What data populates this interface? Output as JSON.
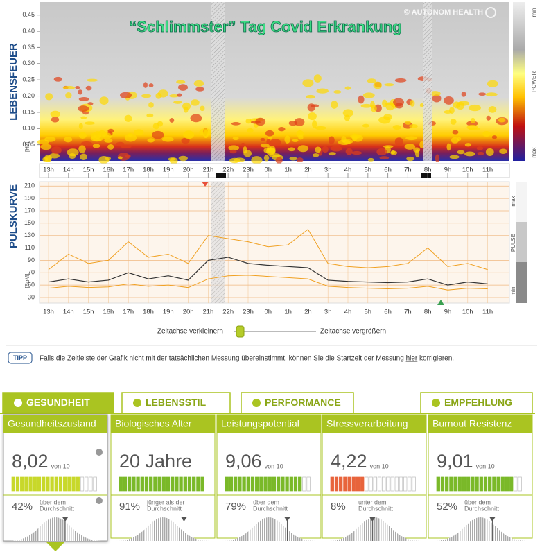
{
  "lebensfeuer": {
    "axis_label": "LEBENSFEUER",
    "unit": "[Hz]",
    "title": "“Schlimmster” Tag Covid Erkrankung",
    "copyright": "© AUTONOM HEALTH",
    "ylim": [
      0,
      0.49
    ],
    "yticks": [
      0.45,
      {
        "value": 0.4,
        "label": "0.40"
      },
      0.35,
      {
        "value": 0.3,
        "label": "0.30"
      },
      0.25,
      {
        "value": 0.2,
        "label": "0.20"
      },
      0.15,
      {
        "value": 0.1,
        "label": "0.10"
      },
      0.05
    ],
    "legend": [
      "min",
      "POWER",
      "max"
    ]
  },
  "hours": [
    "13h",
    "14h",
    "15h",
    "16h",
    "17h",
    "18h",
    "19h",
    "20h",
    "21h",
    "22h",
    "23h",
    "0h",
    "1h",
    "2h",
    "3h",
    "4h",
    "5h",
    "6h",
    "7h",
    "8h",
    "9h",
    "10h",
    "11h"
  ],
  "pulskurve": {
    "axis_label": "PULSKURVE",
    "unit": "[BpM]",
    "ylim": [
      21,
      217
    ],
    "yticks": [
      210,
      190,
      170,
      150,
      130,
      110,
      90,
      70,
      50,
      30
    ],
    "legend": [
      "max",
      "PULSE",
      "min"
    ],
    "series": [
      {
        "color": "#f0a020",
        "values": [
          75,
          100,
          85,
          90,
          120,
          95,
          100,
          85,
          130,
          125,
          120,
          112,
          115,
          140,
          85,
          80,
          78,
          80,
          85,
          110,
          80,
          85,
          75
        ]
      },
      {
        "color": "#f0a020",
        "values": [
          45,
          48,
          46,
          47,
          52,
          48,
          50,
          46,
          60,
          65,
          66,
          64,
          62,
          60,
          48,
          46,
          45,
          44,
          45,
          48,
          42,
          45,
          44
        ]
      },
      {
        "color": "#333333",
        "values": [
          55,
          60,
          55,
          58,
          70,
          60,
          65,
          58,
          90,
          95,
          85,
          82,
          80,
          78,
          58,
          56,
          55,
          54,
          55,
          60,
          50,
          55,
          52
        ]
      }
    ]
  },
  "zoom": {
    "smaller": "Zeitachse verkleinern",
    "larger": "Zeitachse vergrößern"
  },
  "tip": {
    "badge": "TIPP",
    "text_before": "Falls die Zeitleiste der Grafik nicht mit der tatsächlichen Messung übereinstimmt, können Sie die Startzeit der Messung ",
    "link": "hier",
    "text_after": " korrigieren."
  },
  "tabs": [
    "GESUNDHEIT",
    "LEBENSSTIL",
    "PERFORMANCE",
    "EMPFEHLUNG"
  ],
  "cards": [
    {
      "title": "Gesundheitszustand",
      "score": 8.02,
      "score_label": "8,02",
      "scale": "von 10",
      "percent": 42,
      "percent_label": "42%",
      "comparison": [
        "über dem",
        "Durchschnitt"
      ],
      "color": "#c8d82c"
    },
    {
      "title": "Biologisches Alter",
      "score": 20,
      "score_label": "20 Jahre",
      "percent": 91,
      "percent_label": "91%",
      "comparison": [
        "jünger als der",
        "Durchschnitt"
      ],
      "color": "#7ab929"
    },
    {
      "title": "Leistungspotential",
      "score": 9.06,
      "score_label": "9,06",
      "scale": "von 10",
      "percent": 79,
      "percent_label": "79%",
      "comparison": [
        "über dem",
        "Durchschnitt"
      ],
      "color": "#7ab929"
    },
    {
      "title": "Stressverarbeitung",
      "score": 4.22,
      "score_label": "4,22",
      "scale": "von 10",
      "percent": 8,
      "percent_label": "8%",
      "comparison": [
        "unter dem",
        "Durchschnitt"
      ],
      "color": "#e8643c"
    },
    {
      "title": "Burnout Resistenz",
      "score": 9.01,
      "score_label": "9,01",
      "scale": "von 10",
      "percent": 52,
      "percent_label": "52%",
      "comparison": [
        "über dem",
        "Durchschnitt"
      ],
      "color": "#7ab929"
    }
  ]
}
